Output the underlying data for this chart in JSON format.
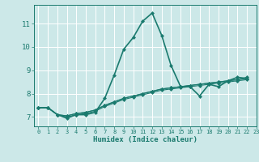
{
  "title": "",
  "xlabel": "Humidex (Indice chaleur)",
  "background_color": "#cce8e8",
  "grid_color": "#ffffff",
  "line_color": "#1a7a6e",
  "xlim": [
    -0.5,
    23
  ],
  "ylim": [
    6.6,
    11.8
  ],
  "yticks": [
    7,
    8,
    9,
    10,
    11
  ],
  "xticks": [
    0,
    1,
    2,
    3,
    4,
    5,
    6,
    7,
    8,
    9,
    10,
    11,
    12,
    13,
    14,
    15,
    16,
    17,
    18,
    19,
    20,
    21,
    22,
    23
  ],
  "series": [
    [
      7.4,
      7.4,
      7.1,
      6.95,
      7.1,
      7.1,
      7.2,
      7.8,
      8.8,
      9.9,
      10.4,
      11.1,
      11.45,
      10.5,
      9.2,
      8.3,
      8.3,
      7.9,
      8.4,
      8.3,
      8.55,
      8.7,
      8.65
    ],
    [
      7.4,
      7.4,
      7.1,
      7.0,
      7.1,
      7.15,
      7.25,
      7.45,
      7.6,
      7.75,
      7.85,
      7.95,
      8.05,
      8.15,
      8.2,
      8.25,
      8.3,
      8.35,
      8.4,
      8.45,
      8.5,
      8.55,
      8.6
    ],
    [
      7.4,
      7.4,
      7.1,
      7.05,
      7.15,
      7.2,
      7.3,
      7.5,
      7.65,
      7.8,
      7.9,
      8.0,
      8.1,
      8.2,
      8.25,
      8.3,
      8.35,
      8.4,
      8.45,
      8.5,
      8.55,
      8.6,
      8.65
    ],
    [
      7.4,
      7.4,
      7.1,
      7.05,
      7.15,
      7.2,
      7.3,
      7.5,
      7.65,
      7.8,
      7.9,
      8.0,
      8.1,
      8.2,
      8.25,
      8.3,
      8.35,
      8.4,
      8.45,
      8.5,
      8.55,
      8.6,
      8.7
    ]
  ],
  "marker": "D",
  "markersize": 2.0,
  "linewidth_main": 1.2,
  "linewidth_other": 0.8
}
